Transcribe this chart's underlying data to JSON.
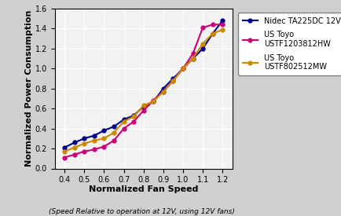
{
  "nidec_x": [
    0.4,
    0.45,
    0.5,
    0.55,
    0.6,
    0.65,
    0.7,
    0.75,
    0.8,
    0.85,
    0.9,
    0.95,
    1.0,
    1.05,
    1.1,
    1.15,
    1.2
  ],
  "nidec_y": [
    0.21,
    0.26,
    0.3,
    0.33,
    0.38,
    0.42,
    0.49,
    0.53,
    0.62,
    0.67,
    0.8,
    0.9,
    1.0,
    1.1,
    1.2,
    1.35,
    1.48
  ],
  "toyo12_x": [
    0.4,
    0.45,
    0.5,
    0.55,
    0.6,
    0.65,
    0.7,
    0.75,
    0.8,
    0.85,
    0.9,
    0.95,
    1.0,
    1.05,
    1.1,
    1.15,
    1.2
  ],
  "toyo12_y": [
    0.11,
    0.14,
    0.17,
    0.19,
    0.22,
    0.28,
    0.4,
    0.47,
    0.58,
    0.68,
    0.77,
    0.88,
    1.0,
    1.15,
    1.41,
    1.44,
    1.44
  ],
  "toyo8_x": [
    0.4,
    0.45,
    0.5,
    0.55,
    0.6,
    0.65,
    0.7,
    0.75,
    0.8,
    0.85,
    0.9,
    0.95,
    1.0,
    1.05,
    1.1,
    1.15,
    1.2
  ],
  "toyo8_y": [
    0.17,
    0.21,
    0.25,
    0.28,
    0.3,
    0.36,
    0.47,
    0.52,
    0.63,
    0.67,
    0.77,
    0.88,
    1.0,
    1.1,
    1.25,
    1.35,
    1.39
  ],
  "nidec_color": "#00008B",
  "toyo12_color": "#CC0077",
  "toyo8_color": "#CC8800",
  "xlabel": "Normalized Fan Speed",
  "xlabel2": "(Speed Relative to operation at 12V, using 12V fans)",
  "ylabel": "Normalized Power Consumption",
  "xlim": [
    0.35,
    1.25
  ],
  "ylim": [
    0.0,
    1.6
  ],
  "xticks": [
    0.4,
    0.5,
    0.6,
    0.7,
    0.8,
    0.9,
    1.0,
    1.1,
    1.2
  ],
  "yticks": [
    0.0,
    0.2,
    0.4,
    0.6,
    0.8,
    1.0,
    1.2,
    1.4,
    1.6
  ],
  "legend_labels": [
    "Nidec TA225DC 12V",
    "US Toyo\nUSTF1203812HW",
    "US Toyo\nUSTF802512MW"
  ],
  "fig_facecolor": "#D0D0D0",
  "ax_facecolor": "#F2F2F2"
}
